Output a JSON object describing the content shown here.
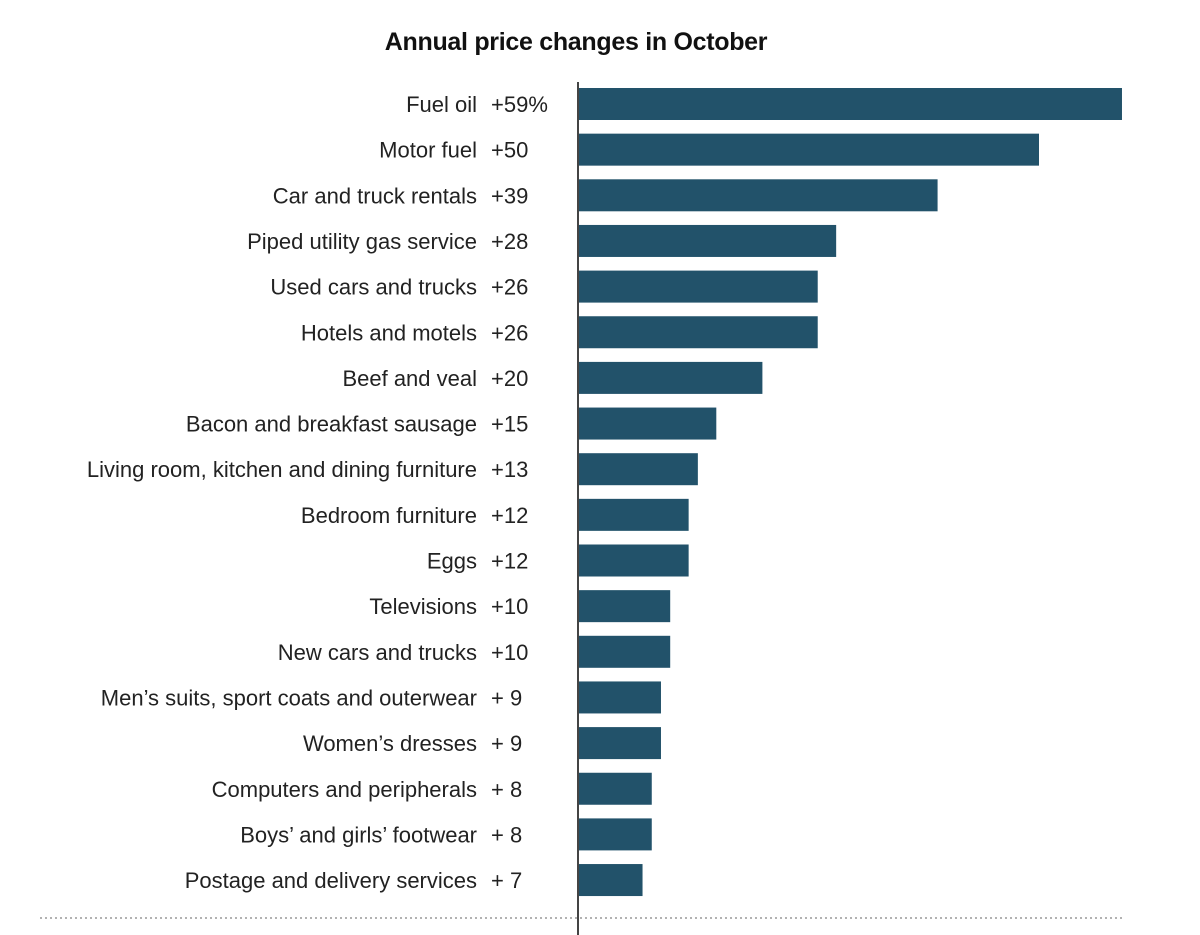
{
  "chart_data": {
    "type": "bar",
    "orientation": "horizontal",
    "title": "Annual price changes in October",
    "xlabel": "",
    "ylabel": "",
    "unit": "%",
    "grid": false,
    "legend": "none",
    "bar_color": "#22526a",
    "xlim": [
      0,
      60
    ],
    "categories": [
      "Fuel oil",
      "Motor fuel",
      "Car and truck rentals",
      "Piped utility gas service",
      "Used cars and trucks",
      "Hotels and motels",
      "Beef and veal",
      "Bacon and breakfast sausage",
      "Living room, kitchen and dining furniture",
      "Bedroom furniture",
      "Eggs",
      "Televisions",
      "New cars and trucks",
      "Men’s suits, sport coats and outerwear",
      "Women’s dresses",
      "Computers and peripherals",
      "Boys’ and girls’ footwear",
      "Postage and delivery services"
    ],
    "values": [
      59,
      50,
      39,
      28,
      26,
      26,
      20,
      15,
      13,
      12,
      12,
      10,
      10,
      9,
      9,
      8,
      8,
      7
    ],
    "value_labels": [
      "+59%",
      "+50",
      "+39",
      "+28",
      "+26",
      "+26",
      "+20",
      "+15",
      "+13",
      "+12",
      "+12",
      "+10",
      "+10",
      "+  9",
      "+  9",
      "+  8",
      "+  8",
      "+  7"
    ]
  }
}
